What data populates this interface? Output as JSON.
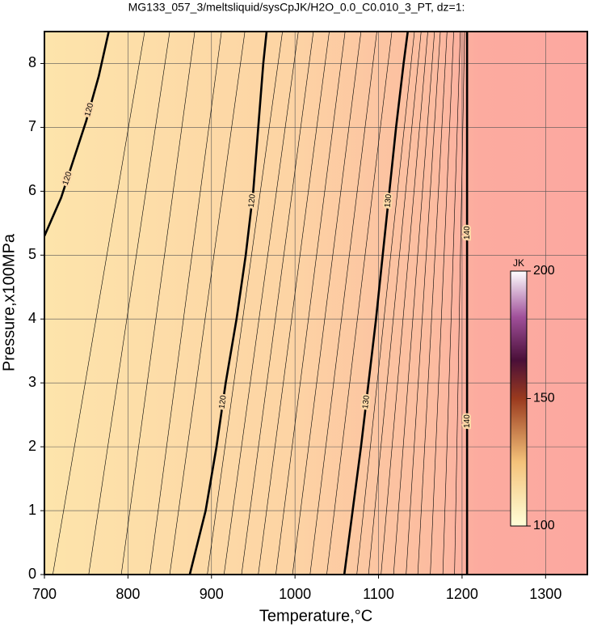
{
  "chart_data": {
    "type": "contour",
    "title": "MG133_057_3/meltsliquid/sysCpJK/H2O_0.0_C0.010_3_PT, dz=1:",
    "x_label": "Temperature,°C",
    "y_label": "Pressure,x100MPa",
    "xlim": [
      700,
      1350
    ],
    "xticks": [
      700,
      800,
      900,
      1000,
      1100,
      1200,
      1300
    ],
    "ylim": [
      0,
      8.5
    ],
    "yticks": [
      0,
      1,
      2,
      3,
      4,
      5,
      6,
      7,
      8
    ],
    "grid": true,
    "contours": [
      {
        "level": 120,
        "x": [
          700,
          720,
          735,
          750,
          765,
          777
        ],
        "y": [
          5.3,
          5.9,
          6.5,
          7.1,
          7.8,
          8.5
        ]
      },
      {
        "level": 120,
        "x": [
          874,
          893,
          906,
          917,
          930,
          941,
          950,
          956,
          962,
          966
        ],
        "y": [
          0,
          1,
          2,
          3,
          4,
          5,
          6,
          7,
          8,
          8.5
        ]
      },
      {
        "level": 130,
        "x": [
          1059,
          1069,
          1079,
          1088,
          1097,
          1105,
          1113,
          1121,
          1130,
          1135
        ],
        "y": [
          0,
          1,
          2,
          3,
          4,
          5,
          6,
          7,
          8,
          8.5
        ]
      },
      {
        "level": 140,
        "x": [
          1206,
          1206,
          1206
        ],
        "y": [
          0,
          4,
          8.5
        ]
      },
      {
        "level": 115,
        "x": [
          710,
          820
        ],
        "y": [
          0,
          8.5
        ]
      },
      {
        "level": 116,
        "x": [
          753,
          850
        ],
        "y": [
          0,
          8.5
        ]
      },
      {
        "level": 117,
        "x": [
          792,
          880
        ],
        "y": [
          0,
          8.5
        ]
      },
      {
        "level": 118,
        "x": [
          826,
          912
        ],
        "y": [
          0,
          8.5
        ]
      },
      {
        "level": 119,
        "x": [
          850,
          940
        ],
        "y": [
          0,
          8.5
        ]
      },
      {
        "level": 121,
        "x": [
          895,
          985
        ],
        "y": [
          0,
          8.5
        ]
      },
      {
        "level": 122,
        "x": [
          915,
          1004
        ],
        "y": [
          0,
          8.5
        ]
      },
      {
        "level": 123,
        "x": [
          936,
          1022
        ],
        "y": [
          0,
          8.5
        ]
      },
      {
        "level": 124,
        "x": [
          956,
          1041
        ],
        "y": [
          0,
          8.5
        ]
      },
      {
        "level": 125,
        "x": [
          977,
          1060
        ],
        "y": [
          0,
          8.5
        ]
      },
      {
        "level": 126,
        "x": [
          997,
          1079
        ],
        "y": [
          0,
          8.5
        ]
      },
      {
        "level": 127,
        "x": [
          1018,
          1098
        ],
        "y": [
          0,
          8.5
        ]
      },
      {
        "level": 128,
        "x": [
          1038,
          1116
        ],
        "y": [
          0,
          8.5
        ]
      },
      {
        "level": 131,
        "x": [
          1074,
          1143
        ],
        "y": [
          0,
          8.5
        ]
      },
      {
        "level": 132,
        "x": [
          1088,
          1151
        ],
        "y": [
          0,
          8.5
        ]
      },
      {
        "level": 133,
        "x": [
          1103,
          1159
        ],
        "y": [
          0,
          8.5
        ]
      },
      {
        "level": 134,
        "x": [
          1118,
          1167
        ],
        "y": [
          0,
          8.5
        ]
      },
      {
        "level": 135,
        "x": [
          1133,
          1174
        ],
        "y": [
          0,
          8.5
        ]
      },
      {
        "level": 136,
        "x": [
          1147,
          1182
        ],
        "y": [
          0,
          8.5
        ]
      },
      {
        "level": 137,
        "x": [
          1162,
          1190
        ],
        "y": [
          0,
          8.5
        ]
      },
      {
        "level": 138,
        "x": [
          1177,
          1198
        ],
        "y": [
          0,
          8.5
        ]
      },
      {
        "level": 139,
        "x": [
          1191,
          1203
        ],
        "y": [
          0,
          8.5
        ]
      }
    ],
    "colorbar": {
      "label": "JK",
      "lim": [
        100,
        200
      ],
      "ticks": [
        100,
        150,
        200
      ]
    }
  }
}
